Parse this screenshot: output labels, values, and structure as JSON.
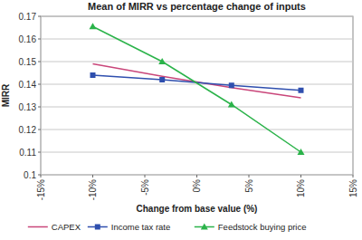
{
  "chart_data": {
    "type": "line",
    "title": "Mean of MIRR vs percentage change of inputs",
    "x_label": "Change from base value (%)",
    "y_label": "MIRR",
    "xlim": [
      -15,
      15
    ],
    "xticks": [
      {
        "value": -15,
        "label": "-15%"
      },
      {
        "value": -10,
        "label": "-10%"
      },
      {
        "value": -5,
        "label": "-5%"
      },
      {
        "value": 0,
        "label": "0%"
      },
      {
        "value": 5,
        "label": "5%"
      },
      {
        "value": 10,
        "label": "10%"
      },
      {
        "value": 15,
        "label": "15%"
      }
    ],
    "ylim": [
      0.1,
      0.17
    ],
    "yticks": [
      0.1,
      0.11,
      0.12,
      0.13,
      0.14,
      0.15,
      0.16,
      0.17
    ],
    "grid": true,
    "legend": "bottom",
    "x": [
      -10,
      -3.33,
      3.33,
      10
    ],
    "series": [
      {
        "name": "CAPEX",
        "color": "#c9467a",
        "marker": "none",
        "values": [
          0.149,
          0.1435,
          0.1385,
          0.134
        ]
      },
      {
        "name": "Income tax rate",
        "color": "#2f4fae",
        "marker": "square",
        "values": [
          0.144,
          0.142,
          0.1395,
          0.1373
        ]
      },
      {
        "name": "Feedstock buying price",
        "color": "#2bb34a",
        "marker": "triangle",
        "values": [
          0.1655,
          0.15,
          0.131,
          0.11
        ]
      }
    ]
  }
}
